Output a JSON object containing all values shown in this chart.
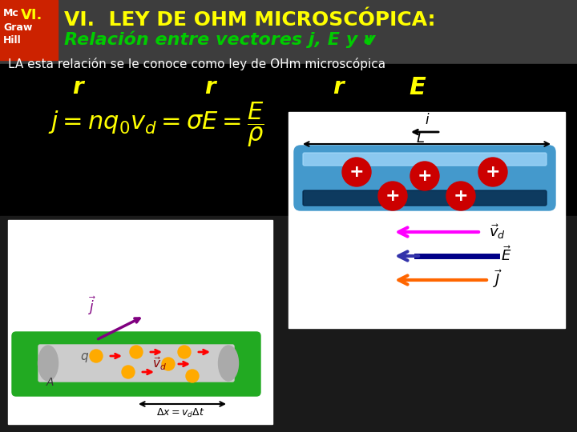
{
  "title_line1": "VI.  LEY DE OHM MICROSCÓPICA:",
  "title_line2": "Relación entre vectores j, E y v",
  "title_line2_sub": "d",
  "subtitle": "LA esta relación se le conoce como ley de OHm microscópica",
  "bg_color": "#1a1a1a",
  "header_bg": "#3a3a3a",
  "title_color": "#ffff00",
  "subtitle_color": "#ffffff",
  "formula_color": "#ffff00",
  "mc_logo_red": "#cc0000",
  "mc_logo_green": "#00aa00",
  "mc_logo_yellow": "#ffff00",
  "right_panel_bg": "#ffffff",
  "arrow_vd_color": "#ff00ff",
  "arrow_E_color": "#000080",
  "arrow_J_color": "#ff6600",
  "cylinder_color": "#4499cc"
}
